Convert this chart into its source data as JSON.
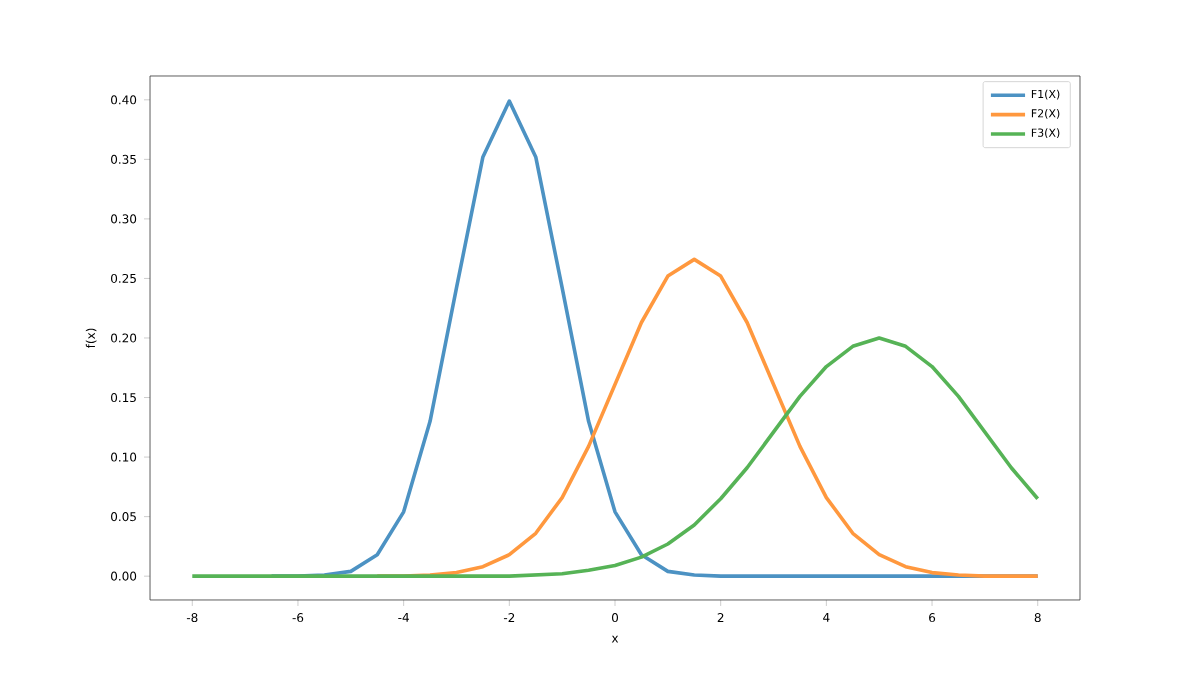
{
  "chart_data": {
    "type": "line",
    "xlabel": "x",
    "ylabel": "f(x)",
    "x": [
      -8,
      -7.5,
      -7,
      -6.5,
      -6,
      -5.5,
      -5,
      -4.5,
      -4,
      -3.5,
      -3,
      -2.5,
      -2,
      -1.5,
      -1,
      -0.5,
      0,
      0.5,
      1,
      1.5,
      2,
      2.5,
      3,
      3.5,
      4,
      4.5,
      5,
      5.5,
      6,
      6.5,
      7,
      7.5,
      8
    ],
    "series": [
      {
        "name": "F1(X)",
        "color": "#4c92c3",
        "values": [
          null,
          null,
          null,
          0,
          0,
          0.001,
          0.004,
          0.018,
          0.054,
          0.13,
          0.242,
          0.352,
          0.399,
          0.352,
          0.242,
          0.13,
          0.054,
          0.018,
          0.004,
          0.001,
          0,
          0,
          0,
          0,
          0,
          0,
          0,
          0,
          0,
          0,
          0,
          0,
          0
        ]
      },
      {
        "name": "F2(X)",
        "color": "#ff983e",
        "values": [
          null,
          null,
          null,
          null,
          null,
          null,
          null,
          0,
          0,
          0.001,
          0.003,
          0.008,
          0.018,
          0.036,
          0.066,
          0.109,
          0.161,
          0.213,
          0.252,
          0.266,
          0.252,
          0.213,
          0.161,
          0.109,
          0.066,
          0.036,
          0.018,
          0.008,
          0.003,
          0.001,
          0,
          0,
          0
        ]
      },
      {
        "name": "F3(X)",
        "color": "#56b356",
        "values": [
          0,
          0,
          0,
          0,
          0,
          0,
          0,
          0,
          0,
          0,
          0,
          0,
          0,
          0.001,
          0.002,
          0.005,
          0.009,
          0.016,
          0.027,
          0.043,
          0.065,
          0.091,
          0.121,
          0.151,
          0.176,
          0.193,
          0.2,
          0.193,
          0.176,
          0.151,
          0.121,
          0.091,
          0.065
        ]
      }
    ],
    "xlim": [
      -8.8,
      8.8
    ],
    "ylim": [
      -0.02,
      0.42
    ],
    "xticks": [
      -8,
      -6,
      -4,
      -2,
      0,
      2,
      4,
      6,
      8
    ],
    "yticks": [
      {
        "value": 0,
        "label": "0.00"
      },
      {
        "value": 0.05,
        "label": "0.05"
      },
      {
        "value": 0.1,
        "label": "0.10"
      },
      {
        "value": 0.15,
        "label": "0.15"
      },
      {
        "value": 0.2,
        "label": "0.20"
      },
      {
        "value": 0.25,
        "label": "0.25"
      },
      {
        "value": 0.3,
        "label": "0.30"
      },
      {
        "value": 0.35,
        "label": "0.35"
      },
      {
        "value": 0.4,
        "label": "0.40"
      }
    ],
    "legend": "top right",
    "grid": false,
    "marker": "none",
    "line_style": "solid"
  }
}
